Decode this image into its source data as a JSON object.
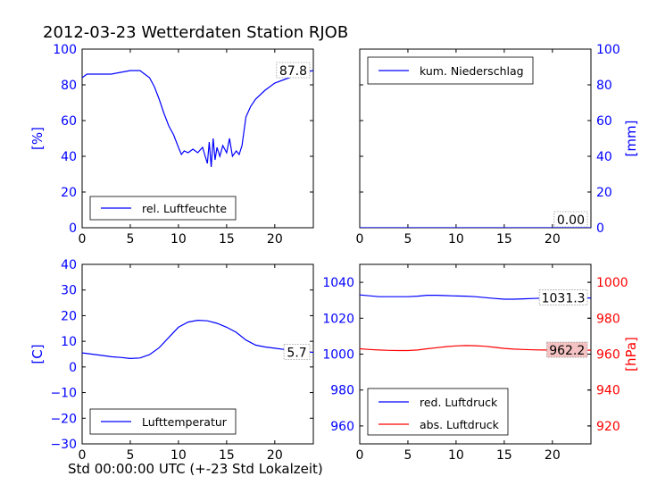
{
  "title": "2012-03-23 Wetterdaten Station RJOB",
  "x_caption": "Std 00:00:00 UTC (+-23 Std Lokalzeit)",
  "colors": {
    "blue": "#0000ff",
    "red": "#ff0000",
    "axis": "#000000",
    "box_red_fill": "#f4c2c2"
  },
  "chart_data": [
    {
      "type": "line",
      "ylabel": "[%]",
      "ylabel_side": "left",
      "ylabel_color": "#0000ff",
      "tick_color": "#0000ff",
      "xlim": [
        0,
        24
      ],
      "ylim": [
        0,
        100
      ],
      "xticks": [
        "0",
        "5",
        "10",
        "15",
        "20"
      ],
      "yticks": [
        "0",
        "20",
        "40",
        "60",
        "80",
        "100"
      ],
      "legend_position": "lower-left",
      "series": [
        {
          "name": "rel. Luftfeuchte",
          "color": "#0000ff",
          "last_value_label": "87.8",
          "x": [
            0,
            0.5,
            1,
            2,
            3,
            4,
            5,
            5.5,
            6,
            6.5,
            7,
            7.5,
            8,
            8.5,
            9,
            9.5,
            10,
            10.3,
            10.6,
            11,
            11.5,
            12,
            12.5,
            13,
            13.2,
            13.4,
            13.6,
            13.8,
            14,
            14.3,
            14.6,
            15,
            15.3,
            15.6,
            16,
            16.3,
            16.6,
            17,
            17.5,
            18,
            19,
            20,
            21,
            22,
            23,
            24
          ],
          "y": [
            84,
            86,
            86,
            86,
            86,
            87,
            88,
            88,
            88,
            86,
            84,
            79,
            72,
            64,
            57,
            52,
            45,
            41,
            43,
            42,
            44,
            42,
            45,
            36,
            48,
            34,
            50,
            38,
            45,
            40,
            46,
            42,
            50,
            40,
            43,
            41,
            46,
            62,
            68,
            72,
            77,
            81,
            83,
            85,
            87,
            88
          ]
        }
      ]
    },
    {
      "type": "line",
      "ylabel": "[mm]",
      "ylabel_side": "right",
      "ylabel_color": "#0000ff",
      "tick_color": "#0000ff",
      "xlim": [
        0,
        24
      ],
      "ylim": [
        0,
        100
      ],
      "xticks": [
        "0",
        "5",
        "10",
        "15",
        "20"
      ],
      "yticks": [
        "0",
        "20",
        "40",
        "60",
        "80",
        "100"
      ],
      "legend_position": "upper-left",
      "series": [
        {
          "name": "kum. Niederschlag",
          "color": "#0000ff",
          "last_value_label": "0.00",
          "x": [
            0,
            24
          ],
          "y": [
            0,
            0
          ]
        }
      ]
    },
    {
      "type": "line",
      "ylabel": "[C]",
      "ylabel_side": "left",
      "ylabel_color": "#0000ff",
      "tick_color": "#0000ff",
      "xlim": [
        0,
        24
      ],
      "ylim": [
        -30,
        40
      ],
      "xticks": [
        "0",
        "5",
        "10",
        "15",
        "20"
      ],
      "yticks": [
        "−30",
        "−20",
        "−10",
        "0",
        "10",
        "20",
        "30",
        "40"
      ],
      "legend_position": "lower-left",
      "series": [
        {
          "name": "Lufttemperatur",
          "color": "#0000ff",
          "last_value_label": "5.7",
          "x": [
            0,
            1,
            2,
            3,
            4,
            5,
            6,
            7,
            8,
            9,
            10,
            11,
            12,
            13,
            14,
            15,
            16,
            17,
            18,
            19,
            20,
            21,
            22,
            23,
            24
          ],
          "y": [
            5.5,
            5,
            4.5,
            4,
            3.7,
            3.3,
            3.5,
            4.8,
            7.5,
            11.5,
            15.5,
            17.5,
            18.2,
            18,
            17,
            15.5,
            13.5,
            10.5,
            8.5,
            7.8,
            7.3,
            6.8,
            6.3,
            6,
            5.7
          ]
        }
      ]
    },
    {
      "type": "line",
      "ylabel": "[hPa]",
      "ylabel_side": "right",
      "ylabel_color": "#ff0000",
      "tick_color": "#0000ff",
      "right_tick_color": "#ff0000",
      "xlim": [
        0,
        24
      ],
      "ylim": [
        950,
        1050
      ],
      "ylim_right": [
        910,
        1010
      ],
      "xticks": [
        "0",
        "5",
        "10",
        "15",
        "20"
      ],
      "yticks": [
        "960",
        "980",
        "1000",
        "1020",
        "1040"
      ],
      "yticks_right": [
        "920",
        "940",
        "960",
        "980",
        "1000"
      ],
      "legend_position": "lower-left",
      "series": [
        {
          "name": "red. Luftdruck",
          "color": "#0000ff",
          "axis": "left",
          "last_value_label": "1031.3",
          "x": [
            0,
            1,
            2,
            3,
            4,
            5,
            6,
            7,
            8,
            9,
            10,
            11,
            12,
            13,
            14,
            15,
            16,
            17,
            18,
            19,
            20,
            21,
            22,
            23,
            24
          ],
          "y": [
            1033,
            1032.5,
            1032,
            1032,
            1032,
            1032,
            1032.3,
            1032.8,
            1032.8,
            1032.6,
            1032.4,
            1032.3,
            1032,
            1031.5,
            1031,
            1030.6,
            1030.6,
            1030.8,
            1031,
            1031.2,
            1031.3,
            1031.4,
            1031.3,
            1031.3,
            1031.3
          ]
        },
        {
          "name": "abs. Luftdruck",
          "color": "#ff0000",
          "axis": "right",
          "last_value_label": "962.2",
          "x": [
            0,
            1,
            2,
            3,
            4,
            5,
            6,
            7,
            8,
            9,
            10,
            11,
            12,
            13,
            14,
            15,
            16,
            17,
            18,
            19,
            20,
            21,
            22,
            23,
            24
          ],
          "y": [
            963,
            962.6,
            962.3,
            962.1,
            962,
            962,
            962.3,
            963,
            963.6,
            964.2,
            964.6,
            964.8,
            964.7,
            964.4,
            963.8,
            963.2,
            962.8,
            962.6,
            962.4,
            962.3,
            962.3,
            962.4,
            962.4,
            962.3,
            962.2
          ]
        }
      ]
    }
  ]
}
